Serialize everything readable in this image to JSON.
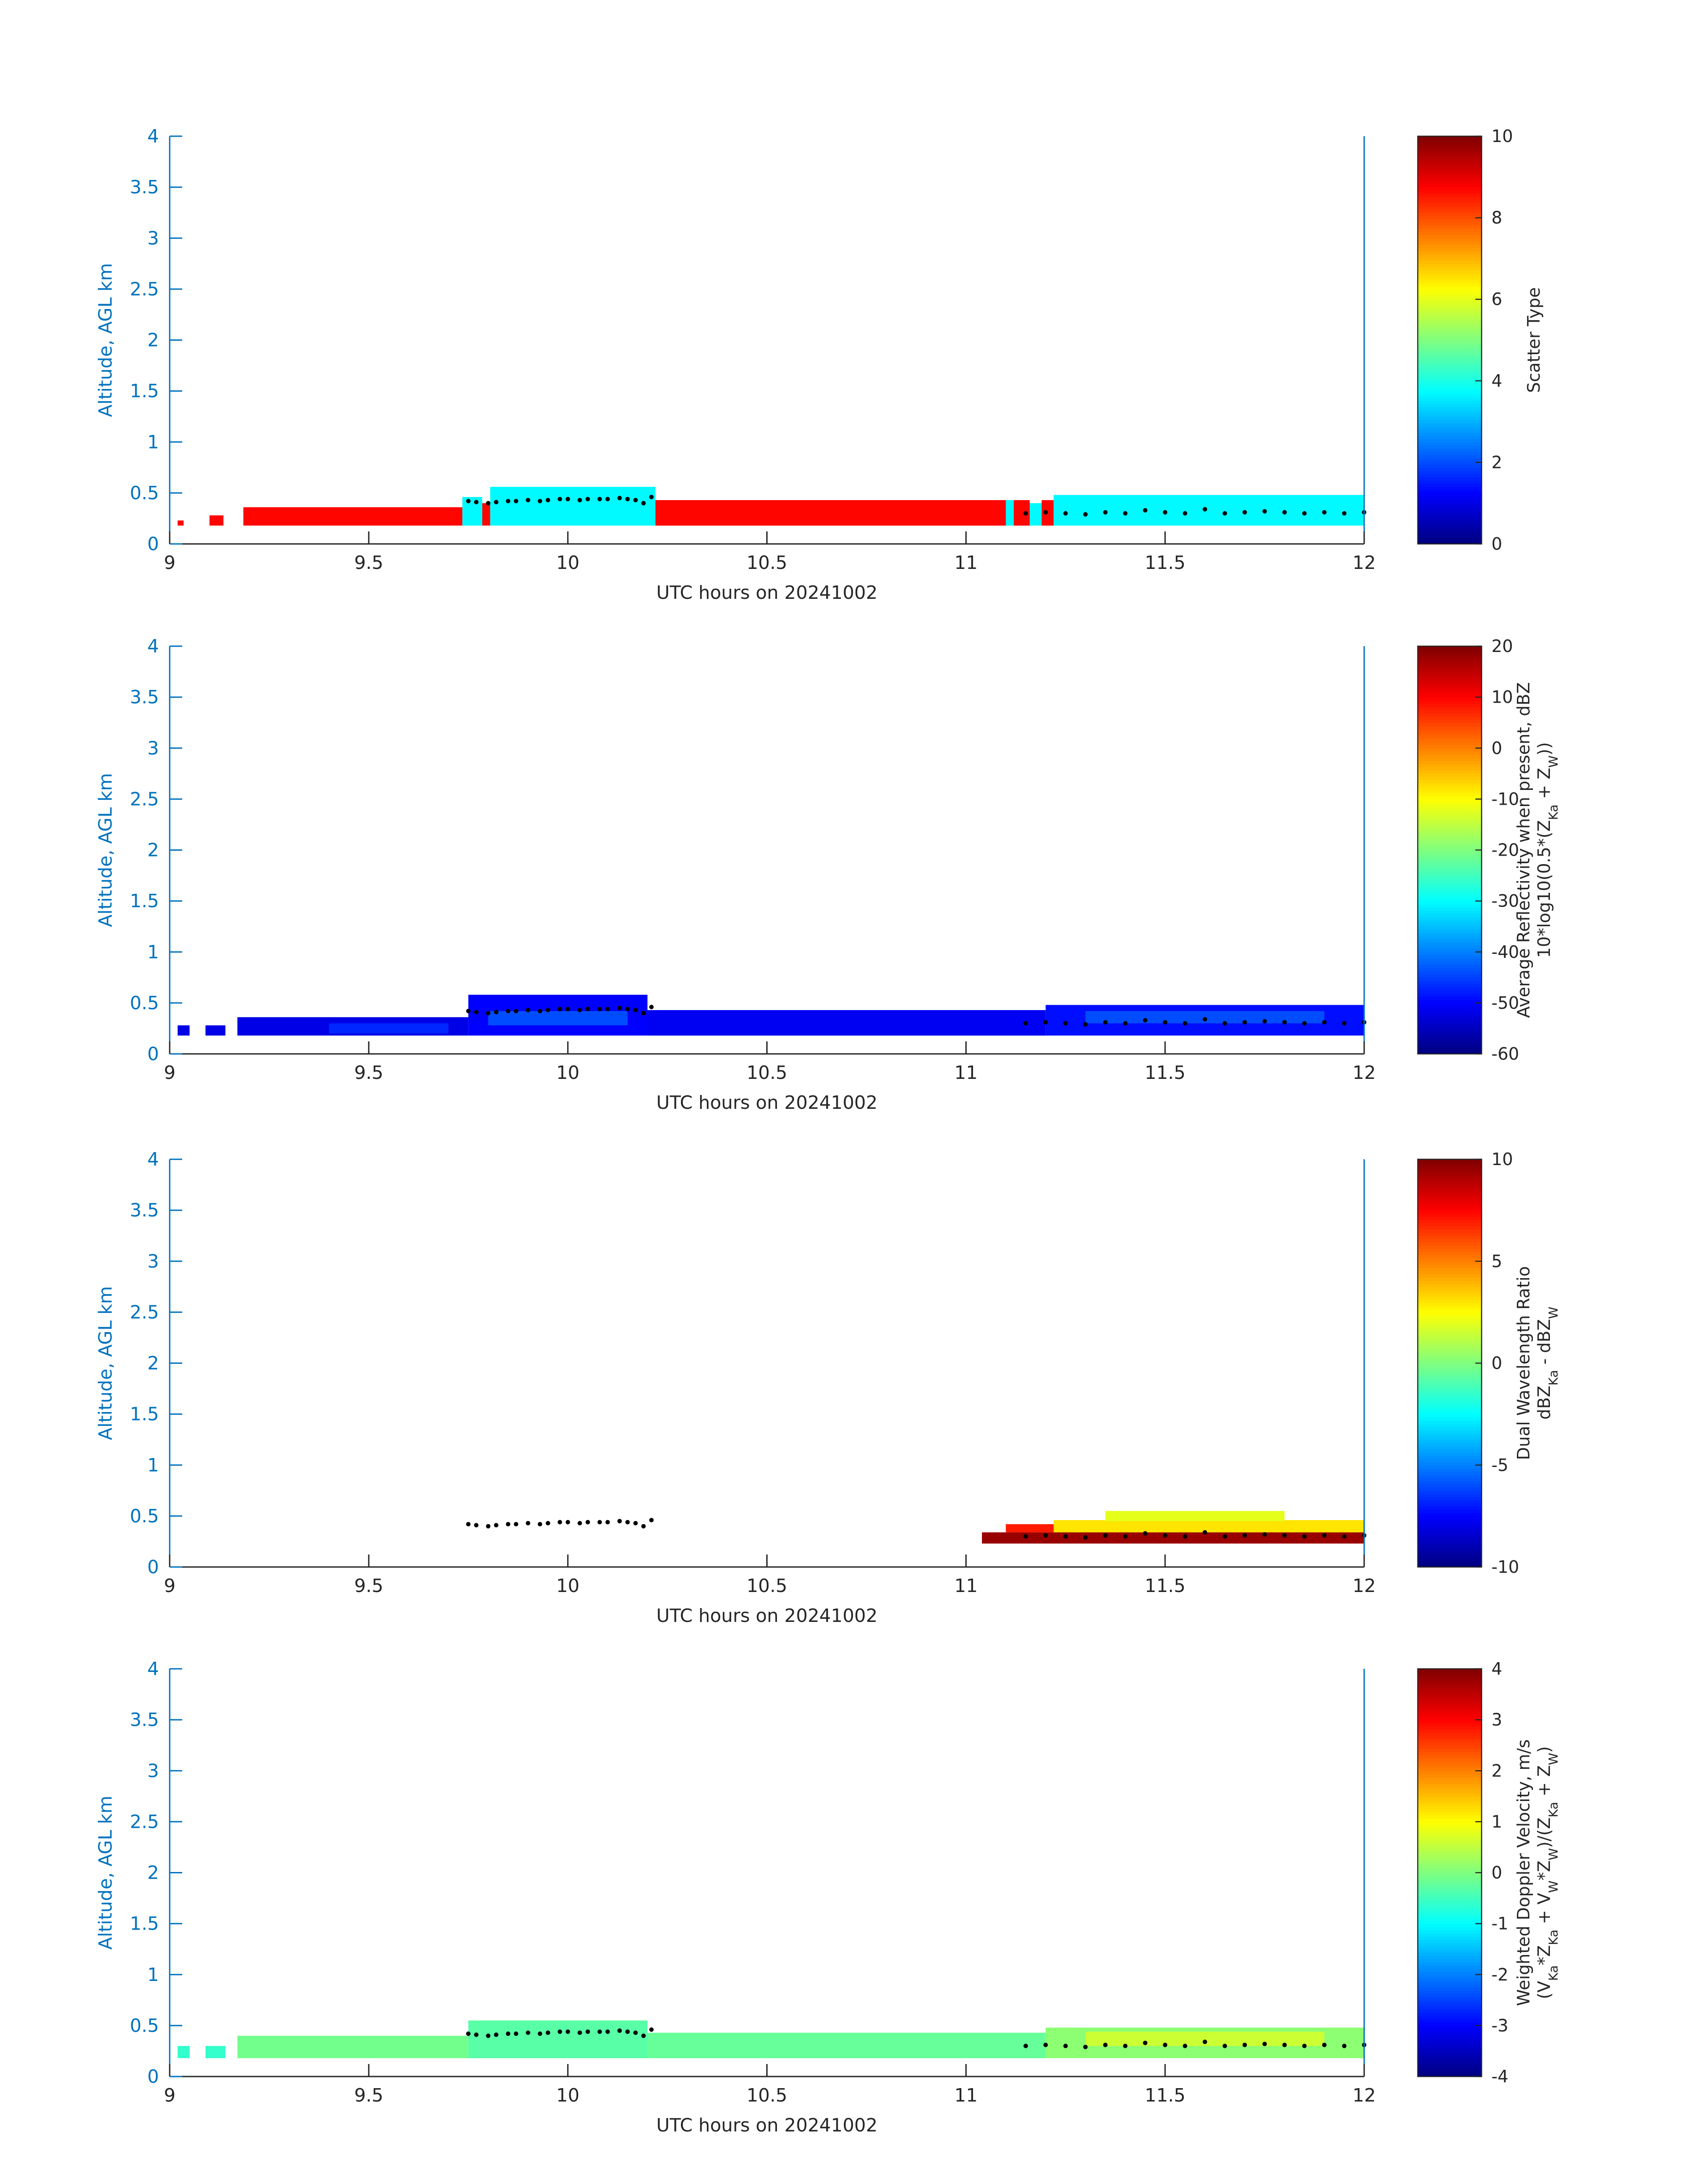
{
  "figure": {
    "colormap": "jet",
    "axis_color": "#0072bd",
    "text_color": "#262626"
  },
  "chart_data": [
    {
      "type": "heatmap",
      "panel_id": "scatter-type",
      "xlabel": "UTC hours on 20241002",
      "ylabel": "Altitude, AGL km",
      "xlim": [
        9,
        12
      ],
      "ylim": [
        0,
        4
      ],
      "xticks": [
        "9",
        "9.5",
        "10",
        "10.5",
        "11",
        "11.5",
        "12"
      ],
      "yticks": [
        "0",
        "0.5",
        "1",
        "1.5",
        "2",
        "2.5",
        "3",
        "3.5",
        "4"
      ],
      "colorbar": {
        "label_lines": [
          "Scatter Type"
        ],
        "clim": [
          0,
          10
        ],
        "ticks": [
          "0",
          "2",
          "4",
          "6",
          "8",
          "10"
        ]
      },
      "blocks": [
        {
          "x0": 9.02,
          "x1": 9.035,
          "y0": 0.18,
          "y1": 0.23,
          "value": 8.7
        },
        {
          "x0": 9.1,
          "x1": 9.135,
          "y0": 0.18,
          "y1": 0.28,
          "value": 8.7
        },
        {
          "x0": 9.185,
          "x1": 9.735,
          "y0": 0.18,
          "y1": 0.36,
          "value": 8.7
        },
        {
          "x0": 9.735,
          "x1": 9.785,
          "y0": 0.18,
          "y1": 0.46,
          "value": 3.7
        },
        {
          "x0": 9.785,
          "x1": 9.805,
          "y0": 0.18,
          "y1": 0.4,
          "value": 8.7
        },
        {
          "x0": 9.805,
          "x1": 10.22,
          "y0": 0.18,
          "y1": 0.56,
          "value": 3.7
        },
        {
          "x0": 10.22,
          "x1": 11.1,
          "y0": 0.18,
          "y1": 0.43,
          "value": 8.7
        },
        {
          "x0": 11.1,
          "x1": 11.12,
          "y0": 0.18,
          "y1": 0.43,
          "value": 3.7
        },
        {
          "x0": 11.12,
          "x1": 11.16,
          "y0": 0.18,
          "y1": 0.43,
          "value": 8.7
        },
        {
          "x0": 11.16,
          "x1": 11.19,
          "y0": 0.18,
          "y1": 0.4,
          "value": 3.7
        },
        {
          "x0": 11.19,
          "x1": 11.22,
          "y0": 0.18,
          "y1": 0.43,
          "value": 8.7
        },
        {
          "x0": 11.22,
          "x1": 12.0,
          "y0": 0.18,
          "y1": 0.48,
          "value": 3.7
        }
      ]
    },
    {
      "type": "heatmap",
      "panel_id": "reflectivity",
      "xlabel": "UTC hours on 20241002",
      "ylabel": "Altitude, AGL km",
      "xlim": [
        9,
        12
      ],
      "ylim": [
        0,
        4
      ],
      "xticks": [
        "9",
        "9.5",
        "10",
        "10.5",
        "11",
        "11.5",
        "12"
      ],
      "yticks": [
        "0",
        "0.5",
        "1",
        "1.5",
        "2",
        "2.5",
        "3",
        "3.5",
        "4"
      ],
      "colorbar": {
        "label_lines": [
          "Average Reflectivity when present, dBZ",
          "10*log10(0.5*(Z_Ka + Z_W))"
        ],
        "clim": [
          -60,
          20
        ],
        "ticks": [
          "-60",
          "-50",
          "-40",
          "-30",
          "-20",
          "-10",
          "0",
          "10",
          "20"
        ]
      },
      "blocks": [
        {
          "x0": 9.02,
          "x1": 9.05,
          "y0": 0.18,
          "y1": 0.28,
          "value": -52
        },
        {
          "x0": 9.09,
          "x1": 9.14,
          "y0": 0.18,
          "y1": 0.28,
          "value": -52
        },
        {
          "x0": 9.17,
          "x1": 9.75,
          "y0": 0.18,
          "y1": 0.36,
          "value": -52
        },
        {
          "x0": 9.4,
          "x1": 9.7,
          "y0": 0.2,
          "y1": 0.3,
          "value": -47
        },
        {
          "x0": 9.75,
          "x1": 10.2,
          "y0": 0.18,
          "y1": 0.58,
          "value": -50
        },
        {
          "x0": 9.8,
          "x1": 10.15,
          "y0": 0.28,
          "y1": 0.42,
          "value": -44
        },
        {
          "x0": 10.2,
          "x1": 11.2,
          "y0": 0.18,
          "y1": 0.43,
          "value": -51
        },
        {
          "x0": 11.2,
          "x1": 12.0,
          "y0": 0.18,
          "y1": 0.48,
          "value": -49
        },
        {
          "x0": 11.3,
          "x1": 11.9,
          "y0": 0.3,
          "y1": 0.42,
          "value": -44
        }
      ]
    },
    {
      "type": "heatmap",
      "panel_id": "dual-wavelength-ratio",
      "xlabel": "UTC hours on 20241002",
      "ylabel": "Altitude, AGL km",
      "xlim": [
        9,
        12
      ],
      "ylim": [
        0,
        4
      ],
      "xticks": [
        "9",
        "9.5",
        "10",
        "10.5",
        "11",
        "11.5",
        "12"
      ],
      "yticks": [
        "0",
        "0.5",
        "1",
        "1.5",
        "2",
        "2.5",
        "3",
        "3.5",
        "4"
      ],
      "colorbar": {
        "label_lines": [
          "Dual Wavelength Ratio",
          "dBZ_Ka - dBZ_W"
        ],
        "clim": [
          -10,
          10
        ],
        "ticks": [
          "-10",
          "-5",
          "0",
          "5",
          "10"
        ]
      },
      "blocks": [
        {
          "x0": 11.04,
          "x1": 12.0,
          "y0": 0.23,
          "y1": 0.34,
          "value": 9.5
        },
        {
          "x0": 11.1,
          "x1": 11.22,
          "y0": 0.34,
          "y1": 0.42,
          "value": 7
        },
        {
          "x0": 11.22,
          "x1": 12.0,
          "y0": 0.34,
          "y1": 0.46,
          "value": 3
        },
        {
          "x0": 11.35,
          "x1": 11.8,
          "y0": 0.45,
          "y1": 0.55,
          "value": 2
        }
      ]
    },
    {
      "type": "heatmap",
      "panel_id": "doppler-velocity",
      "xlabel": "UTC hours on 20241002",
      "ylabel": "Altitude, AGL km",
      "xlim": [
        9,
        12
      ],
      "ylim": [
        0,
        4
      ],
      "xticks": [
        "9",
        "9.5",
        "10",
        "10.5",
        "11",
        "11.5",
        "12"
      ],
      "yticks": [
        "0",
        "0.5",
        "1",
        "1.5",
        "2",
        "2.5",
        "3",
        "3.5",
        "4"
      ],
      "colorbar": {
        "label_lines": [
          "Weighted Doppler Velocity, m/s",
          "(V_Ka*Z_Ka + V_W*Z_W)/(Z_Ka + Z_W)"
        ],
        "clim": [
          -4,
          4
        ],
        "ticks": [
          "-4",
          "-3",
          "-2",
          "-1",
          "0",
          "1",
          "2",
          "3",
          "4"
        ]
      },
      "blocks": [
        {
          "x0": 9.02,
          "x1": 9.05,
          "y0": 0.18,
          "y1": 0.3,
          "value": -0.6
        },
        {
          "x0": 9.09,
          "x1": 9.14,
          "y0": 0.18,
          "y1": 0.3,
          "value": -0.6
        },
        {
          "x0": 9.17,
          "x1": 9.75,
          "y0": 0.18,
          "y1": 0.4,
          "value": -0.1
        },
        {
          "x0": 9.75,
          "x1": 10.2,
          "y0": 0.18,
          "y1": 0.55,
          "value": -0.3
        },
        {
          "x0": 10.2,
          "x1": 11.2,
          "y0": 0.18,
          "y1": 0.43,
          "value": -0.2
        },
        {
          "x0": 11.2,
          "x1": 12.0,
          "y0": 0.18,
          "y1": 0.48,
          "value": 0.1
        },
        {
          "x0": 11.3,
          "x1": 11.9,
          "y0": 0.3,
          "y1": 0.44,
          "value": 0.6
        }
      ]
    }
  ],
  "cloud_base_markers": [
    {
      "x": 9.75,
      "y": 0.42
    },
    {
      "x": 9.77,
      "y": 0.41
    },
    {
      "x": 9.8,
      "y": 0.4
    },
    {
      "x": 9.82,
      "y": 0.41
    },
    {
      "x": 9.85,
      "y": 0.42
    },
    {
      "x": 9.87,
      "y": 0.42
    },
    {
      "x": 9.9,
      "y": 0.43
    },
    {
      "x": 9.93,
      "y": 0.42
    },
    {
      "x": 9.95,
      "y": 0.43
    },
    {
      "x": 9.98,
      "y": 0.44
    },
    {
      "x": 10.0,
      "y": 0.44
    },
    {
      "x": 10.03,
      "y": 0.43
    },
    {
      "x": 10.05,
      "y": 0.44
    },
    {
      "x": 10.08,
      "y": 0.44
    },
    {
      "x": 10.1,
      "y": 0.44
    },
    {
      "x": 10.13,
      "y": 0.45
    },
    {
      "x": 10.15,
      "y": 0.44
    },
    {
      "x": 10.17,
      "y": 0.43
    },
    {
      "x": 10.19,
      "y": 0.4
    },
    {
      "x": 10.21,
      "y": 0.46
    },
    {
      "x": 11.15,
      "y": 0.3
    },
    {
      "x": 11.2,
      "y": 0.31
    },
    {
      "x": 11.25,
      "y": 0.3
    },
    {
      "x": 11.3,
      "y": 0.29
    },
    {
      "x": 11.35,
      "y": 0.31
    },
    {
      "x": 11.4,
      "y": 0.3
    },
    {
      "x": 11.45,
      "y": 0.33
    },
    {
      "x": 11.5,
      "y": 0.31
    },
    {
      "x": 11.55,
      "y": 0.3
    },
    {
      "x": 11.6,
      "y": 0.34
    },
    {
      "x": 11.65,
      "y": 0.3
    },
    {
      "x": 11.7,
      "y": 0.31
    },
    {
      "x": 11.75,
      "y": 0.32
    },
    {
      "x": 11.8,
      "y": 0.31
    },
    {
      "x": 11.85,
      "y": 0.3
    },
    {
      "x": 11.9,
      "y": 0.31
    },
    {
      "x": 11.95,
      "y": 0.3
    },
    {
      "x": 12.0,
      "y": 0.31
    }
  ]
}
